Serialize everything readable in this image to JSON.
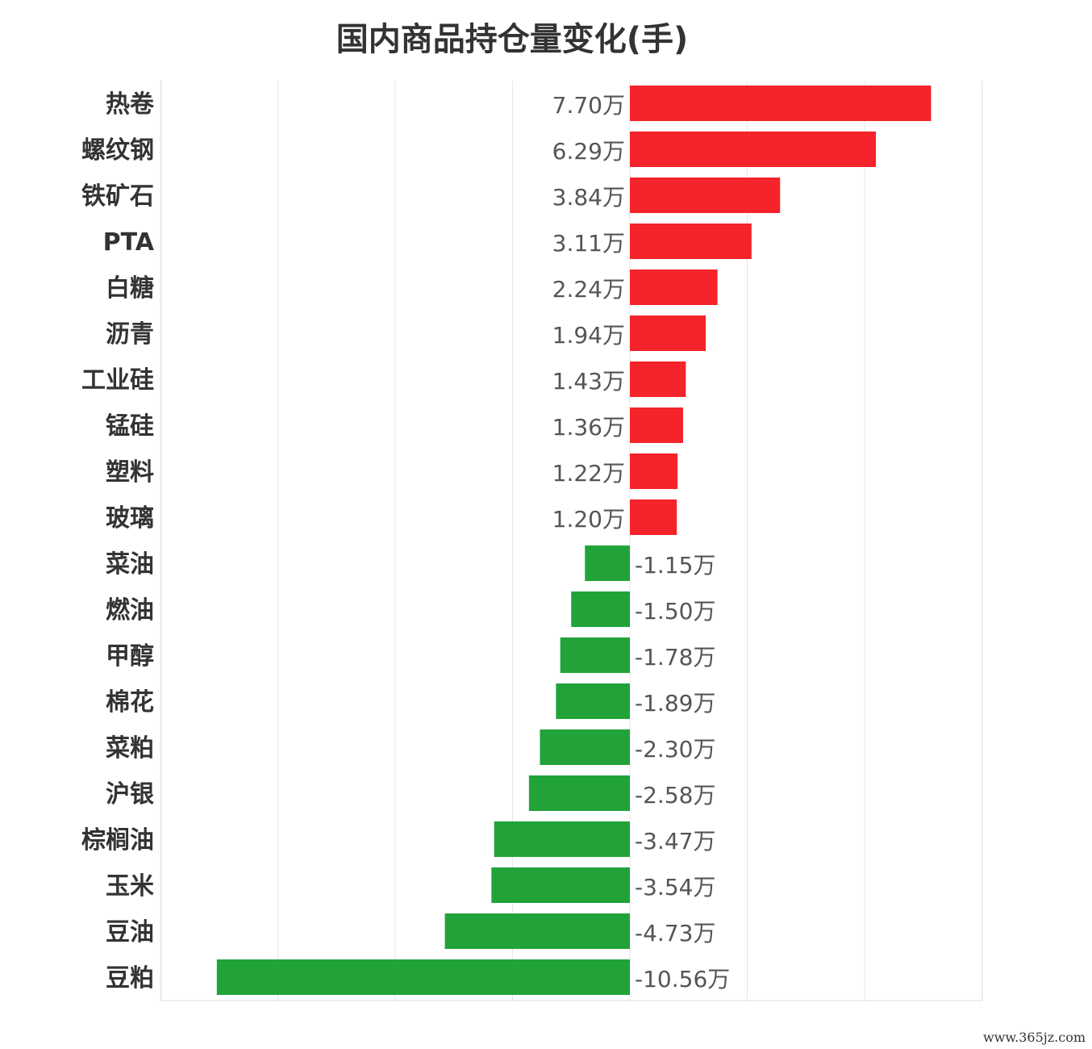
{
  "chart_data": {
    "type": "bar",
    "orientation": "horizontal",
    "title": "国内商品持仓量变化(手)",
    "unit_suffix": "万",
    "categories": [
      "热卷",
      "螺纹钢",
      "铁矿石",
      "PTA",
      "白糖",
      "沥青",
      "工业硅",
      "锰硅",
      "塑料",
      "玻璃",
      "菜油",
      "燃油",
      "甲醇",
      "棉花",
      "菜粕",
      "沪银",
      "棕榈油",
      "玉米",
      "豆油",
      "豆粕"
    ],
    "values": [
      7.7,
      6.29,
      3.84,
      3.11,
      2.24,
      1.94,
      1.43,
      1.36,
      1.22,
      1.2,
      -1.15,
      -1.5,
      -1.78,
      -1.89,
      -2.3,
      -2.58,
      -3.47,
      -3.54,
      -4.73,
      -10.56
    ],
    "labels": [
      "7.70万",
      "6.29万",
      "3.84万",
      "3.11万",
      "2.24万",
      "1.94万",
      "1.43万",
      "1.36万",
      "1.22万",
      "1.20万",
      "-1.15万",
      "-1.50万",
      "-1.78万",
      "-1.89万",
      "-2.30万",
      "-2.58万",
      "-3.47万",
      "-3.54万",
      "-4.73万",
      "-10.56万"
    ],
    "xlim": [
      -12,
      9
    ],
    "grid": true,
    "colors": {
      "positive": "#f5232a",
      "negative": "#21a33a"
    }
  },
  "watermark": "www.365jz.com"
}
